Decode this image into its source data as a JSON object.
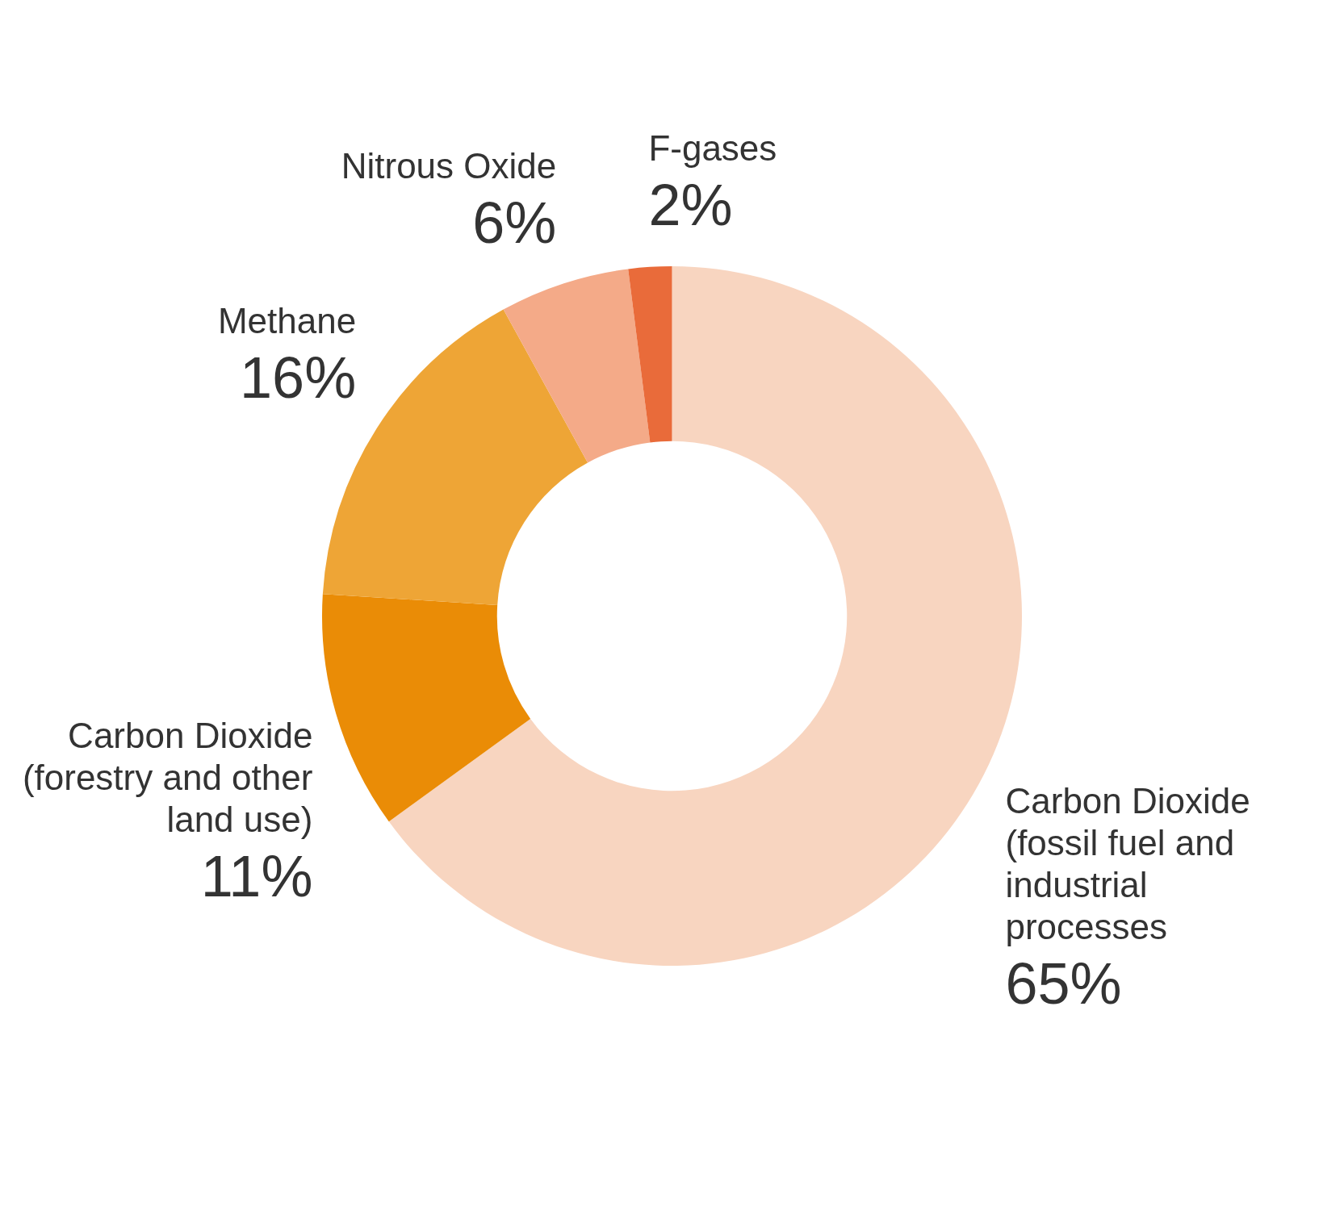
{
  "chart_data": {
    "type": "donut",
    "categories": [
      "Carbon Dioxide (fossil fuel and industrial processes",
      "Carbon Dioxide (forestry and other land use)",
      "Methane",
      "Nitrous Oxide",
      "F-gases"
    ],
    "values": [
      65,
      11,
      16,
      6,
      2
    ],
    "colors": [
      "#f8d5c0",
      "#ea8c06",
      "#eea536",
      "#f4aa88",
      "#e96b3a"
    ],
    "value_labels": [
      "65%",
      "11%",
      "16%",
      "6%",
      "2%"
    ]
  }
}
